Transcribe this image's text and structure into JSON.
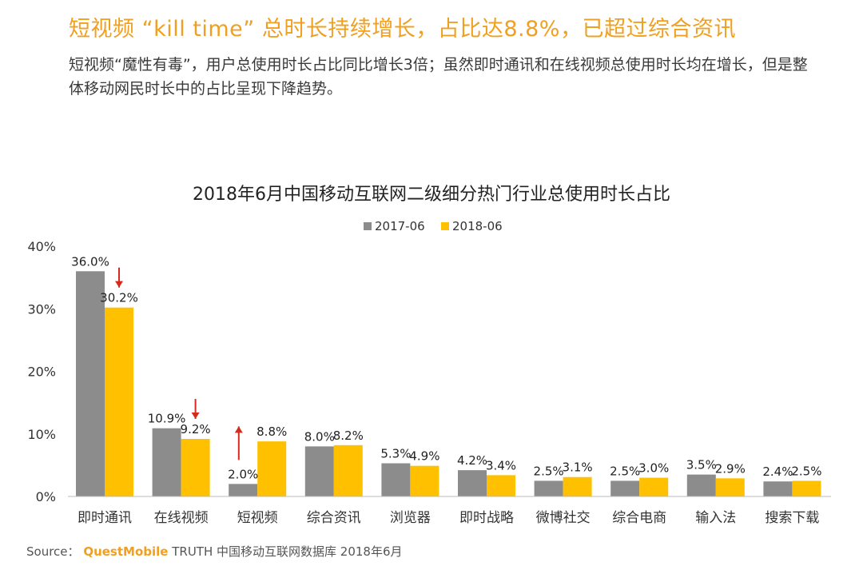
{
  "header": {
    "title": "短视频 “kill time” 总时长持续增长，占比达8.8%，已超过综合资讯",
    "subtitle": "短视频“魔性有毒”，用户总使用时长占比同比增长3倍；虽然即时通讯和在线视频总使用时长均在增长，但是整体移动网民时长中的占比呈现下降趋势。"
  },
  "source": {
    "label": "Source：",
    "brand": "QuestMobile",
    "rest": " TRUTH 中国移动互联网数据库 2018年6月"
  },
  "colors": {
    "series_2017": "#8c8c8c",
    "series_2018": "#ffc000",
    "arrow": "#d62a1e",
    "accent": "#f0a020"
  },
  "chart_data": {
    "type": "bar",
    "title": "2018年6月中国移动互联网二级细分热门行业总使用时长占比",
    "categories": [
      "即时通讯",
      "在线视频",
      "短视频",
      "综合资讯",
      "浏览器",
      "即时战略",
      "微博社交",
      "综合电商",
      "输入法",
      "搜索下载"
    ],
    "series": [
      {
        "name": "2017-06",
        "values": [
          36.0,
          10.9,
          2.0,
          8.0,
          5.3,
          4.2,
          2.5,
          2.5,
          3.5,
          2.4
        ]
      },
      {
        "name": "2018-06",
        "values": [
          30.2,
          9.2,
          8.8,
          8.2,
          4.9,
          3.4,
          3.1,
          3.0,
          2.9,
          2.5
        ]
      }
    ],
    "data_labels": [
      [
        "36.0%",
        "10.9%",
        "2.0%",
        "8.0%",
        "5.3%",
        "4.2%",
        "2.5%",
        "2.5%",
        "3.5%",
        "2.4%"
      ],
      [
        "30.2%",
        "9.2%",
        "8.8%",
        "8.2%",
        "4.9%",
        "3.4%",
        "3.1%",
        "3.0%",
        "2.9%",
        "2.5%"
      ]
    ],
    "ylim": [
      0,
      40
    ],
    "yticks": [
      0,
      10,
      20,
      30,
      40
    ],
    "ytick_labels": [
      "0%",
      "10%",
      "20%",
      "30%",
      "40%"
    ],
    "xlabel": "",
    "ylabel": "",
    "legend_position": "top-center",
    "annotations": [
      {
        "category": "即时通讯",
        "direction": "down"
      },
      {
        "category": "在线视频",
        "direction": "down"
      },
      {
        "category": "短视频",
        "direction": "up"
      }
    ]
  }
}
